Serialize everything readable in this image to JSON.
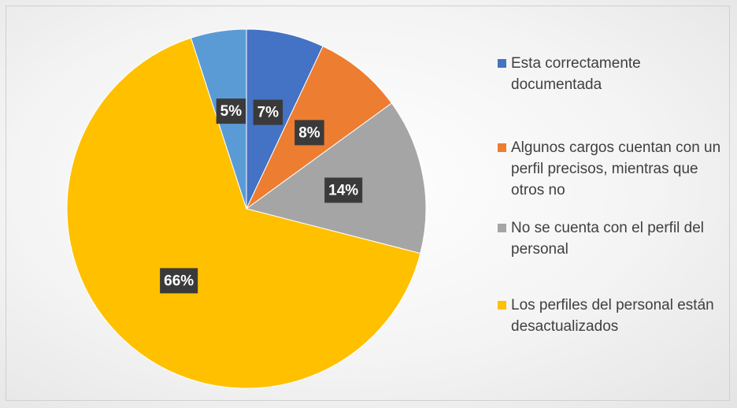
{
  "chart_data": {
    "type": "pie",
    "categories": [
      "Esta correctamente documentada",
      "Algunos cargos cuentan con un perfil precisos, mientras que otros no",
      "No se cuenta con el perfil del personal",
      "Los perfiles del personal están desactualizados",
      null
    ],
    "values": [
      7,
      8,
      14,
      66,
      5
    ],
    "value_labels": [
      "7%",
      "8%",
      "14%",
      "66%",
      "5%"
    ],
    "colors": [
      "#4472c4",
      "#ed7d31",
      "#a5a5a5",
      "#ffc000",
      "#5b9bd5"
    ],
    "legend": "right"
  }
}
